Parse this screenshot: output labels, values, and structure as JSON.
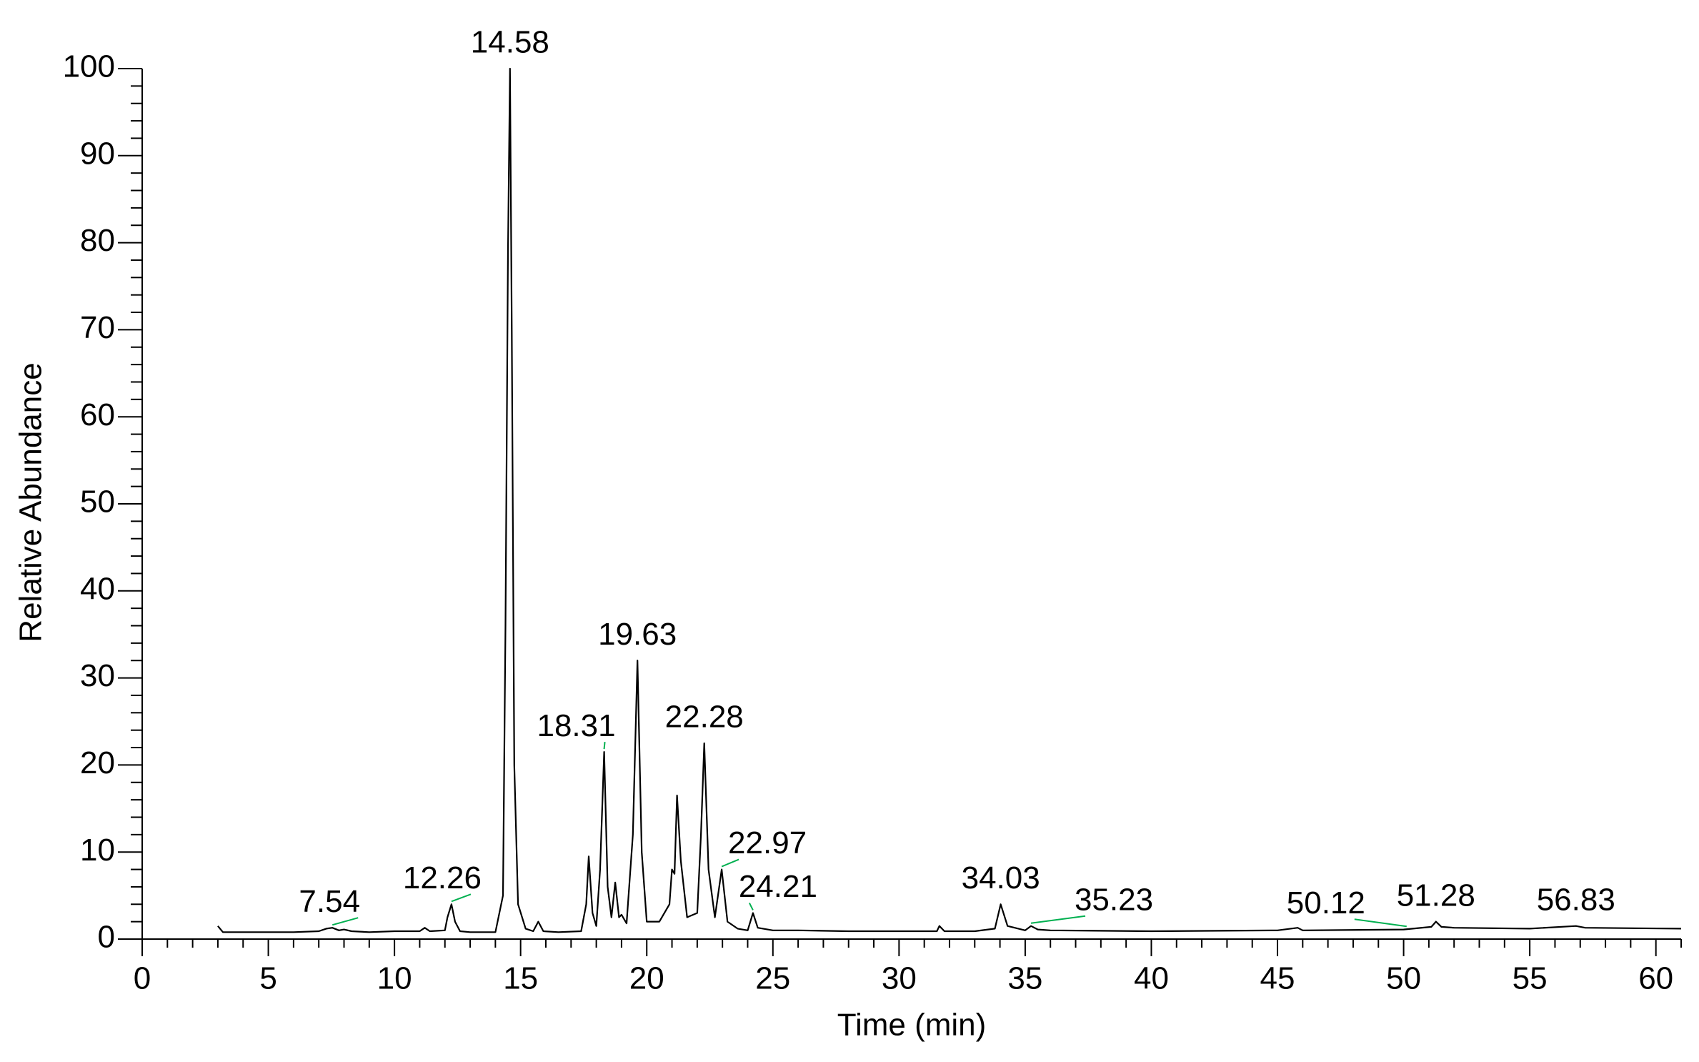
{
  "chart_data": {
    "type": "line",
    "xlabel": "Time (min)",
    "ylabel": "Relative Abundance",
    "color": "#000000",
    "label_line_color": "#00b050",
    "xlim": [
      0,
      61
    ],
    "ylim": [
      0,
      100
    ],
    "xticks": [
      0,
      5,
      10,
      15,
      20,
      25,
      30,
      35,
      40,
      45,
      50,
      55,
      60
    ],
    "yticks": [
      0,
      10,
      20,
      30,
      40,
      50,
      60,
      70,
      80,
      90,
      100
    ],
    "x_minor_per_major": 5,
    "y_minor_per_major": 5,
    "x": [
      3,
      3.2,
      4,
      6,
      7,
      7.3,
      7.54,
      7.8,
      8.0,
      8.3,
      9,
      10,
      11,
      11.2,
      11.4,
      12,
      12.1,
      12.26,
      12.4,
      12.6,
      13,
      14,
      14.3,
      14.4,
      14.5,
      14.58,
      14.65,
      14.75,
      14.9,
      15.2,
      15.5,
      15.7,
      15.9,
      16.5,
      17.4,
      17.6,
      17.7,
      17.85,
      18.0,
      18.15,
      18.31,
      18.45,
      18.6,
      18.75,
      18.9,
      19.0,
      19.2,
      19.45,
      19.63,
      19.8,
      20.0,
      20.5,
      20.9,
      21.0,
      21.1,
      21.2,
      21.35,
      21.6,
      22.0,
      22.15,
      22.28,
      22.45,
      22.7,
      22.97,
      23.2,
      23.6,
      24.0,
      24.21,
      24.4,
      25,
      26,
      28,
      30,
      31.5,
      31.6,
      31.8,
      33,
      33.8,
      34.03,
      34.3,
      35,
      35.23,
      35.5,
      36,
      40,
      45,
      45.8,
      46,
      50,
      51.1,
      51.28,
      51.5,
      52,
      55,
      56.83,
      57.2,
      61
    ],
    "values": [
      1.5,
      0.8,
      0.8,
      0.8,
      0.9,
      1.2,
      1.3,
      1.0,
      1.1,
      0.9,
      0.8,
      0.9,
      0.9,
      1.3,
      0.9,
      1.0,
      2.5,
      4.0,
      2.0,
      0.9,
      0.8,
      0.8,
      5,
      36,
      79,
      100,
      70,
      20,
      4,
      1.2,
      0.9,
      2.0,
      0.9,
      0.8,
      0.9,
      4,
      9.5,
      3,
      1.5,
      8,
      21.5,
      6,
      2.5,
      6.5,
      2.5,
      2.8,
      1.8,
      12,
      32,
      10,
      2.0,
      2.0,
      4,
      8,
      7.5,
      16.5,
      9,
      2.5,
      3,
      12,
      22.5,
      8,
      2.5,
      8,
      2.0,
      1.2,
      1.0,
      3,
      1.3,
      1.0,
      1.0,
      0.9,
      0.9,
      0.9,
      1.5,
      0.9,
      0.9,
      1.2,
      4,
      1.5,
      1.0,
      1.5,
      1.1,
      1.0,
      0.9,
      1.0,
      1.3,
      1.0,
      1.1,
      1.4,
      2.0,
      1.4,
      1.3,
      1.2,
      1.5,
      1.3,
      1.2
    ],
    "peak_labels": [
      7.54,
      12.26,
      14.58,
      18.31,
      19.63,
      22.28,
      22.97,
      24.21,
      34.03,
      35.23,
      50.12,
      51.28,
      56.83
    ]
  }
}
